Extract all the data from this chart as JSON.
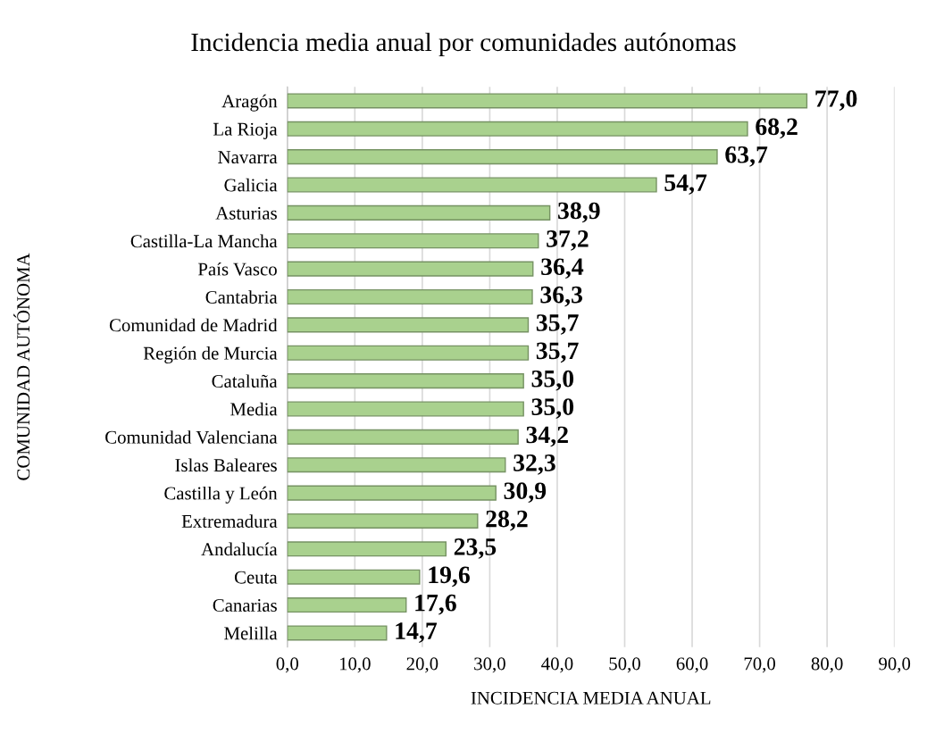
{
  "chart_data": {
    "type": "bar",
    "orientation": "horizontal",
    "title": "Incidencia media anual por comunidades autónomas",
    "xlabel": "INCIDENCIA MEDIA ANUAL",
    "ylabel": "COMUNIDAD AUTÓNOMA",
    "categories": [
      "Aragón",
      "La Rioja",
      "Navarra",
      "Galicia",
      "Asturias",
      "Castilla-La Mancha",
      "País Vasco",
      "Cantabria",
      "Comunidad de Madrid",
      "Región de Murcia",
      "Cataluña",
      "Media",
      "Comunidad Valenciana",
      "Islas Baleares",
      "Castilla y León",
      "Extremadura",
      "Andalucía",
      "Ceuta",
      "Canarias",
      "Melilla"
    ],
    "values": [
      77.0,
      68.2,
      63.7,
      54.7,
      38.9,
      37.2,
      36.4,
      36.3,
      35.7,
      35.7,
      35.0,
      35.0,
      34.2,
      32.3,
      30.9,
      28.2,
      23.5,
      19.6,
      17.6,
      14.7
    ],
    "value_labels": [
      "77,0",
      "68,2",
      "63,7",
      "54,7",
      "38,9",
      "37,2",
      "36,4",
      "36,3",
      "35,7",
      "35,7",
      "35,0",
      "35,0",
      "34,2",
      "32,3",
      "30,9",
      "28,2",
      "23,5",
      "19,6",
      "17,6",
      "14,7"
    ],
    "color": "#a9d18e",
    "xlim": [
      0,
      90
    ],
    "xticks": [
      {
        "value": 0,
        "label": "0,0"
      },
      {
        "value": 10,
        "label": "10,0"
      },
      {
        "value": 20,
        "label": "20,0"
      },
      {
        "value": 30,
        "label": "30,0"
      },
      {
        "value": 40,
        "label": "40,0"
      },
      {
        "value": 50,
        "label": "50,0"
      },
      {
        "value": 60,
        "label": "60,0"
      },
      {
        "value": 70,
        "label": "70,0"
      },
      {
        "value": 80,
        "label": "80,0"
      },
      {
        "value": 90,
        "label": "90,0"
      }
    ],
    "grid": "x",
    "legend": false
  }
}
